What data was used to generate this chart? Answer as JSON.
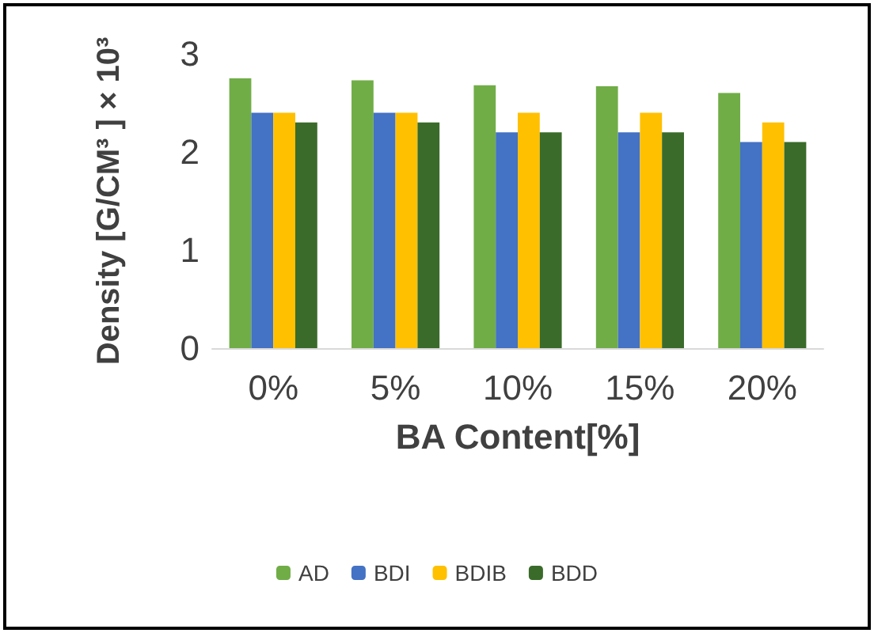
{
  "chart_data": {
    "type": "bar",
    "xlabel": "BA Content[%]",
    "ylabel": "Density [G/CM³ ] × 10³",
    "categories": [
      "0%",
      "5%",
      "10%",
      "15%",
      "20%"
    ],
    "series": [
      {
        "name": "AD",
        "color": "#70ad47",
        "values": [
          2.75,
          2.73,
          2.68,
          2.67,
          2.6
        ]
      },
      {
        "name": "BDI",
        "color": "#4472c4",
        "values": [
          2.4,
          2.4,
          2.2,
          2.2,
          2.1
        ]
      },
      {
        "name": "BDIB",
        "color": "#ffc000",
        "values": [
          2.4,
          2.4,
          2.4,
          2.4,
          2.3
        ]
      },
      {
        "name": "BDD",
        "color": "#3a6b2a",
        "values": [
          2.3,
          2.3,
          2.2,
          2.2,
          2.1
        ]
      }
    ],
    "ylim": [
      0,
      3
    ],
    "yticks": [
      0,
      1,
      2,
      3
    ],
    "grid": false,
    "legend": "bottom"
  }
}
